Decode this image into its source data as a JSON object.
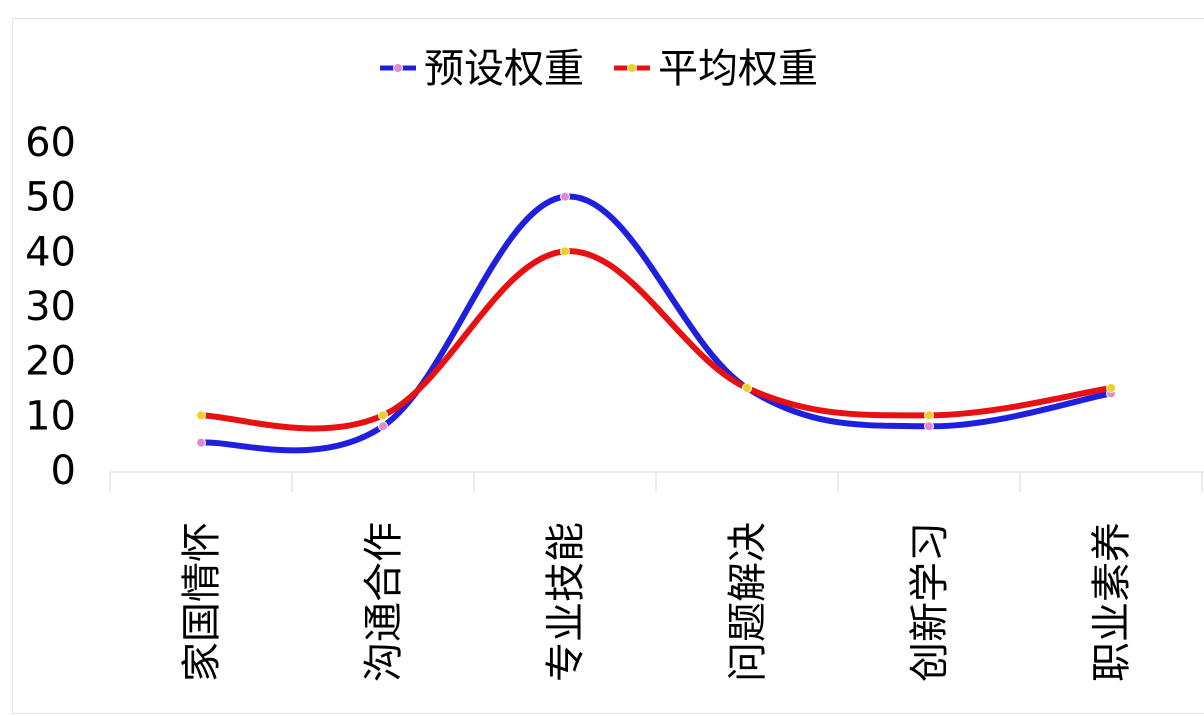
{
  "chart_data": {
    "type": "line",
    "smooth": true,
    "categories": [
      "家国情怀",
      "沟通合作",
      "专业技能",
      "问题解决",
      "创新学习",
      "职业素养"
    ],
    "series": [
      {
        "name": "预设权重",
        "values": [
          5,
          8,
          50,
          15,
          8,
          14
        ],
        "color": "#1f1fe0",
        "marker_color": "#e08ad0"
      },
      {
        "name": "平均权重",
        "values": [
          10,
          10,
          40,
          15,
          10,
          15
        ],
        "color": "#e81010",
        "marker_color": "#f0d020"
      }
    ],
    "ylim": [
      0,
      60
    ],
    "yticks": [
      "0",
      "10",
      "20",
      "30",
      "40",
      "50",
      "60"
    ],
    "title": "",
    "xlabel": "",
    "ylabel": "",
    "grid": false,
    "legend_position": "top"
  }
}
